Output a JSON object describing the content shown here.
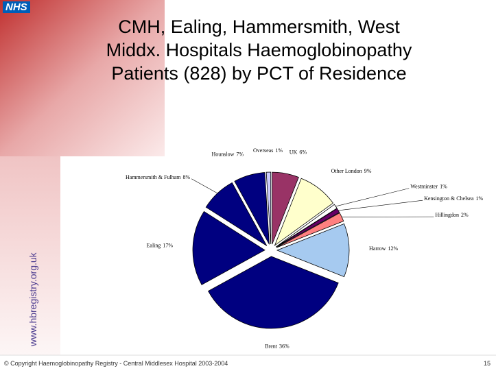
{
  "logo": "NHS",
  "side_text": "www.hbregistry.org.uk",
  "footer": "© Copyright Haemoglobinopathy Registry - Central Middlesex Hospital 2003-2004",
  "page_number": "15",
  "chart_data": {
    "type": "pie",
    "title": "CMH, Ealing, Hammersmith, West Middx. Hospitals Haemoglobinopathy Patients (828) by PCT of Residence",
    "categories": [
      "UK",
      "Other London",
      "Westminster",
      "Kensington & Chelsea",
      "Hillingdon",
      "Harrow",
      "Brent",
      "Ealing",
      "Hammersmith & Fulham",
      "Hounslow",
      "Overseas"
    ],
    "values": [
      6,
      9,
      1,
      1,
      2,
      12,
      36,
      17,
      8,
      7,
      1
    ],
    "value_labels": [
      "6%",
      "9%",
      "1%",
      "1%",
      "2%",
      "12%",
      "36%",
      "17%",
      "8%",
      "7%",
      "1%"
    ],
    "colors": [
      "#993366",
      "#ffffcc",
      "#ffffff",
      "#660066",
      "#ff8080",
      "#a6caf0",
      "#000080",
      "#000080",
      "#000080",
      "#000080",
      "#ccccff"
    ]
  }
}
